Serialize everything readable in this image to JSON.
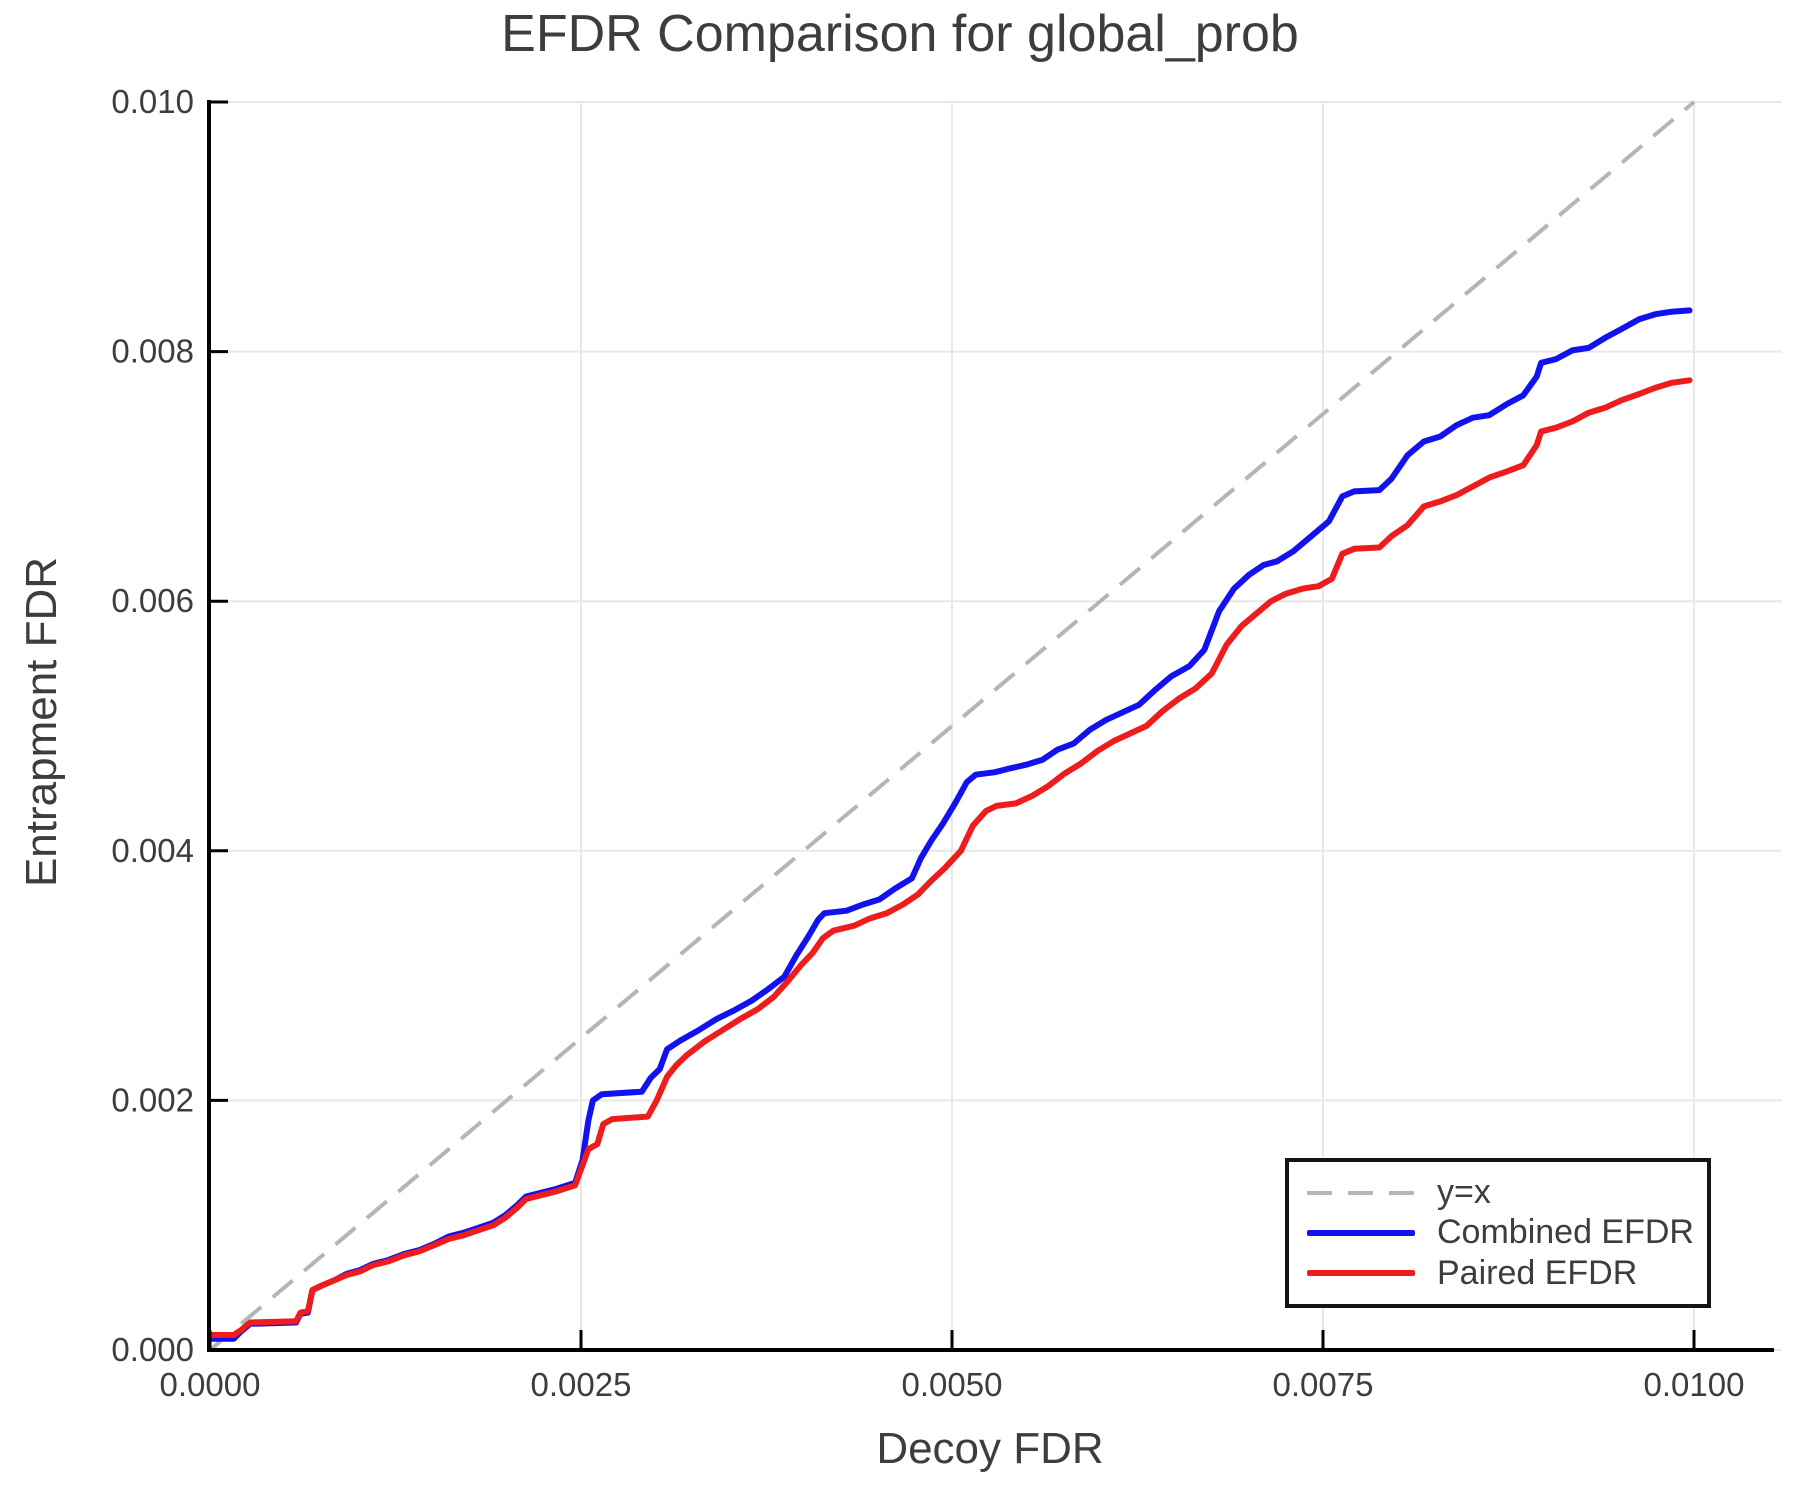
{
  "chart_data": {
    "type": "line",
    "title": "EFDR Comparison for global_prob",
    "xlabel": "Decoy FDR",
    "ylabel": "Entrapment FDR",
    "xlim": [
      0,
      0.01052
    ],
    "ylim": [
      0,
      0.01
    ],
    "grid": true,
    "xticks": {
      "values": [
        0.0,
        0.0025,
        0.005,
        0.0075,
        0.01
      ],
      "labels": [
        "0.0000",
        "0.0025",
        "0.0050",
        "0.0075",
        "0.0100"
      ]
    },
    "yticks": {
      "values": [
        0.0,
        0.002,
        0.004,
        0.006,
        0.008,
        0.01
      ],
      "labels": [
        "0.000",
        "0.002",
        "0.004",
        "0.006",
        "0.008",
        "0.010"
      ]
    },
    "colors": {
      "grid": "#e8e8e8",
      "spine": "#000000",
      "text": "#3d3d3d",
      "reference": "#b5b5b5",
      "combined": "#1212ee",
      "paired": "#ee1c1c"
    },
    "reference_line": {
      "label": "y=x",
      "style": "dashed",
      "color": "#b5b5b5",
      "from": [
        0,
        0
      ],
      "to": [
        0.01,
        0.01
      ]
    },
    "legend": {
      "position": "lower right",
      "entries": [
        {
          "label": "y=x",
          "color": "#b5b5b5",
          "style": "dashed"
        },
        {
          "label": "Combined EFDR",
          "color": "#1212ee",
          "style": "solid"
        },
        {
          "label": "Paired EFDR",
          "color": "#ee1c1c",
          "style": "solid"
        }
      ]
    },
    "series": [
      {
        "name": "Combined EFDR",
        "color": "#1212ee",
        "points": [
          [
            0.0,
            9e-05
          ],
          [
            0.00016,
            9e-05
          ],
          [
            0.00021,
            0.00015
          ],
          [
            0.00027,
            0.00021
          ],
          [
            0.00058,
            0.00022
          ],
          [
            0.00061,
            0.00029
          ],
          [
            0.00066,
            0.0003
          ],
          [
            0.00069,
            0.00048
          ],
          [
            0.00076,
            0.00052
          ],
          [
            0.00084,
            0.00056
          ],
          [
            0.00092,
            0.00061
          ],
          [
            0.00101,
            0.00064
          ],
          [
            0.0011,
            0.00069
          ],
          [
            0.0012,
            0.00072
          ],
          [
            0.00131,
            0.00077
          ],
          [
            0.00141,
            0.0008
          ],
          [
            0.00151,
            0.00085
          ],
          [
            0.00161,
            0.00091
          ],
          [
            0.00171,
            0.00094
          ],
          [
            0.00181,
            0.00098
          ],
          [
            0.00191,
            0.00102
          ],
          [
            0.00199,
            0.00108
          ],
          [
            0.00207,
            0.00116
          ],
          [
            0.00213,
            0.00123
          ],
          [
            0.00223,
            0.00126
          ],
          [
            0.00233,
            0.00129
          ],
          [
            0.00246,
            0.00134
          ],
          [
            0.00251,
            0.00152
          ],
          [
            0.00255,
            0.00184
          ],
          [
            0.00258,
            0.002
          ],
          [
            0.00264,
            0.00205
          ],
          [
            0.00291,
            0.00207
          ],
          [
            0.00297,
            0.00218
          ],
          [
            0.00303,
            0.00225
          ],
          [
            0.00308,
            0.00241
          ],
          [
            0.00317,
            0.00248
          ],
          [
            0.00329,
            0.00256
          ],
          [
            0.00341,
            0.00265
          ],
          [
            0.00353,
            0.00272
          ],
          [
            0.00365,
            0.0028
          ],
          [
            0.00376,
            0.00289
          ],
          [
            0.00387,
            0.00299
          ],
          [
            0.00395,
            0.00316
          ],
          [
            0.00403,
            0.00331
          ],
          [
            0.0041,
            0.00345
          ],
          [
            0.00414,
            0.0035
          ],
          [
            0.00429,
            0.00352
          ],
          [
            0.0044,
            0.00357
          ],
          [
            0.00451,
            0.00361
          ],
          [
            0.00462,
            0.0037
          ],
          [
            0.00473,
            0.00378
          ],
          [
            0.00479,
            0.00394
          ],
          [
            0.00486,
            0.00408
          ],
          [
            0.00494,
            0.00422
          ],
          [
            0.00502,
            0.00438
          ],
          [
            0.0051,
            0.00455
          ],
          [
            0.00516,
            0.00461
          ],
          [
            0.00529,
            0.00463
          ],
          [
            0.00539,
            0.00466
          ],
          [
            0.0055,
            0.00469
          ],
          [
            0.00561,
            0.00473
          ],
          [
            0.00571,
            0.00481
          ],
          [
            0.00582,
            0.00486
          ],
          [
            0.00593,
            0.00497
          ],
          [
            0.00604,
            0.00505
          ],
          [
            0.00615,
            0.00511
          ],
          [
            0.00626,
            0.00517
          ],
          [
            0.00637,
            0.00529
          ],
          [
            0.00648,
            0.0054
          ],
          [
            0.0066,
            0.00548
          ],
          [
            0.0067,
            0.00561
          ],
          [
            0.0068,
            0.00592
          ],
          [
            0.0069,
            0.0061
          ],
          [
            0.007,
            0.00621
          ],
          [
            0.0071,
            0.00629
          ],
          [
            0.00719,
            0.00632
          ],
          [
            0.0073,
            0.0064
          ],
          [
            0.00742,
            0.00652
          ],
          [
            0.00754,
            0.00664
          ],
          [
            0.00763,
            0.00684
          ],
          [
            0.00771,
            0.00688
          ],
          [
            0.00788,
            0.00689
          ],
          [
            0.00796,
            0.00698
          ],
          [
            0.00807,
            0.00717
          ],
          [
            0.00818,
            0.00728
          ],
          [
            0.00829,
            0.00732
          ],
          [
            0.0084,
            0.00741
          ],
          [
            0.00851,
            0.00747
          ],
          [
            0.00862,
            0.00749
          ],
          [
            0.00874,
            0.00758
          ],
          [
            0.00885,
            0.00765
          ],
          [
            0.00894,
            0.0078
          ],
          [
            0.00897,
            0.00791
          ],
          [
            0.00907,
            0.00794
          ],
          [
            0.00918,
            0.00801
          ],
          [
            0.00929,
            0.00803
          ],
          [
            0.0094,
            0.00811
          ],
          [
            0.00951,
            0.00818
          ],
          [
            0.00963,
            0.00826
          ],
          [
            0.00974,
            0.0083
          ],
          [
            0.00985,
            0.00832
          ],
          [
            0.00997,
            0.00833
          ]
        ]
      },
      {
        "name": "Paired EFDR",
        "color": "#ee1c1c",
        "points": [
          [
            0.0,
            0.00012
          ],
          [
            0.00016,
            0.00012
          ],
          [
            0.00021,
            0.00016
          ],
          [
            0.00027,
            0.00022
          ],
          [
            0.00058,
            0.00023
          ],
          [
            0.00061,
            0.0003
          ],
          [
            0.00066,
            0.00031
          ],
          [
            0.00069,
            0.00048
          ],
          [
            0.00076,
            0.00052
          ],
          [
            0.00084,
            0.00056
          ],
          [
            0.00092,
            0.0006
          ],
          [
            0.00101,
            0.00063
          ],
          [
            0.0011,
            0.00068
          ],
          [
            0.0012,
            0.00071
          ],
          [
            0.00131,
            0.00076
          ],
          [
            0.00141,
            0.00079
          ],
          [
            0.00151,
            0.00084
          ],
          [
            0.00161,
            0.00089
          ],
          [
            0.00171,
            0.00092
          ],
          [
            0.00181,
            0.00096
          ],
          [
            0.00191,
            0.001
          ],
          [
            0.00199,
            0.00106
          ],
          [
            0.00207,
            0.00114
          ],
          [
            0.00213,
            0.00121
          ],
          [
            0.00223,
            0.00124
          ],
          [
            0.00233,
            0.00127
          ],
          [
            0.00246,
            0.00132
          ],
          [
            0.00251,
            0.00148
          ],
          [
            0.00255,
            0.00161
          ],
          [
            0.00261,
            0.00165
          ],
          [
            0.00265,
            0.00181
          ],
          [
            0.00271,
            0.00185
          ],
          [
            0.00295,
            0.00187
          ],
          [
            0.00301,
            0.002
          ],
          [
            0.00308,
            0.00219
          ],
          [
            0.00314,
            0.00228
          ],
          [
            0.00321,
            0.00236
          ],
          [
            0.00333,
            0.00247
          ],
          [
            0.00345,
            0.00256
          ],
          [
            0.00357,
            0.00265
          ],
          [
            0.00369,
            0.00273
          ],
          [
            0.0038,
            0.00283
          ],
          [
            0.00389,
            0.00295
          ],
          [
            0.00398,
            0.00308
          ],
          [
            0.00406,
            0.00318
          ],
          [
            0.00413,
            0.0033
          ],
          [
            0.0042,
            0.00336
          ],
          [
            0.00434,
            0.0034
          ],
          [
            0.00445,
            0.00346
          ],
          [
            0.00456,
            0.0035
          ],
          [
            0.00467,
            0.00357
          ],
          [
            0.00477,
            0.00365
          ],
          [
            0.00486,
            0.00376
          ],
          [
            0.00495,
            0.00386
          ],
          [
            0.00506,
            0.004
          ],
          [
            0.00514,
            0.0042
          ],
          [
            0.00523,
            0.00432
          ],
          [
            0.0053,
            0.00436
          ],
          [
            0.00543,
            0.00438
          ],
          [
            0.00554,
            0.00444
          ],
          [
            0.00565,
            0.00452
          ],
          [
            0.00576,
            0.00462
          ],
          [
            0.00587,
            0.0047
          ],
          [
            0.00598,
            0.0048
          ],
          [
            0.00609,
            0.00488
          ],
          [
            0.0062,
            0.00494
          ],
          [
            0.00631,
            0.005
          ],
          [
            0.00642,
            0.00512
          ],
          [
            0.00653,
            0.00522
          ],
          [
            0.00664,
            0.0053
          ],
          [
            0.00675,
            0.00542
          ],
          [
            0.00685,
            0.00565
          ],
          [
            0.00695,
            0.0058
          ],
          [
            0.00705,
            0.0059
          ],
          [
            0.00715,
            0.006
          ],
          [
            0.00725,
            0.00606
          ],
          [
            0.00736,
            0.0061
          ],
          [
            0.00747,
            0.00612
          ],
          [
            0.00756,
            0.00618
          ],
          [
            0.00763,
            0.00638
          ],
          [
            0.00771,
            0.00642
          ],
          [
            0.00788,
            0.00643
          ],
          [
            0.00796,
            0.00652
          ],
          [
            0.00807,
            0.00661
          ],
          [
            0.00818,
            0.00676
          ],
          [
            0.00829,
            0.0068
          ],
          [
            0.0084,
            0.00685
          ],
          [
            0.00851,
            0.00692
          ],
          [
            0.00862,
            0.00699
          ],
          [
            0.00874,
            0.00704
          ],
          [
            0.00885,
            0.00709
          ],
          [
            0.00894,
            0.00725
          ],
          [
            0.00897,
            0.00736
          ],
          [
            0.00907,
            0.00739
          ],
          [
            0.00918,
            0.00744
          ],
          [
            0.00929,
            0.00751
          ],
          [
            0.0094,
            0.00755
          ],
          [
            0.00951,
            0.00761
          ],
          [
            0.00963,
            0.00766
          ],
          [
            0.00974,
            0.00771
          ],
          [
            0.00985,
            0.00775
          ],
          [
            0.00997,
            0.00777
          ]
        ]
      }
    ]
  }
}
